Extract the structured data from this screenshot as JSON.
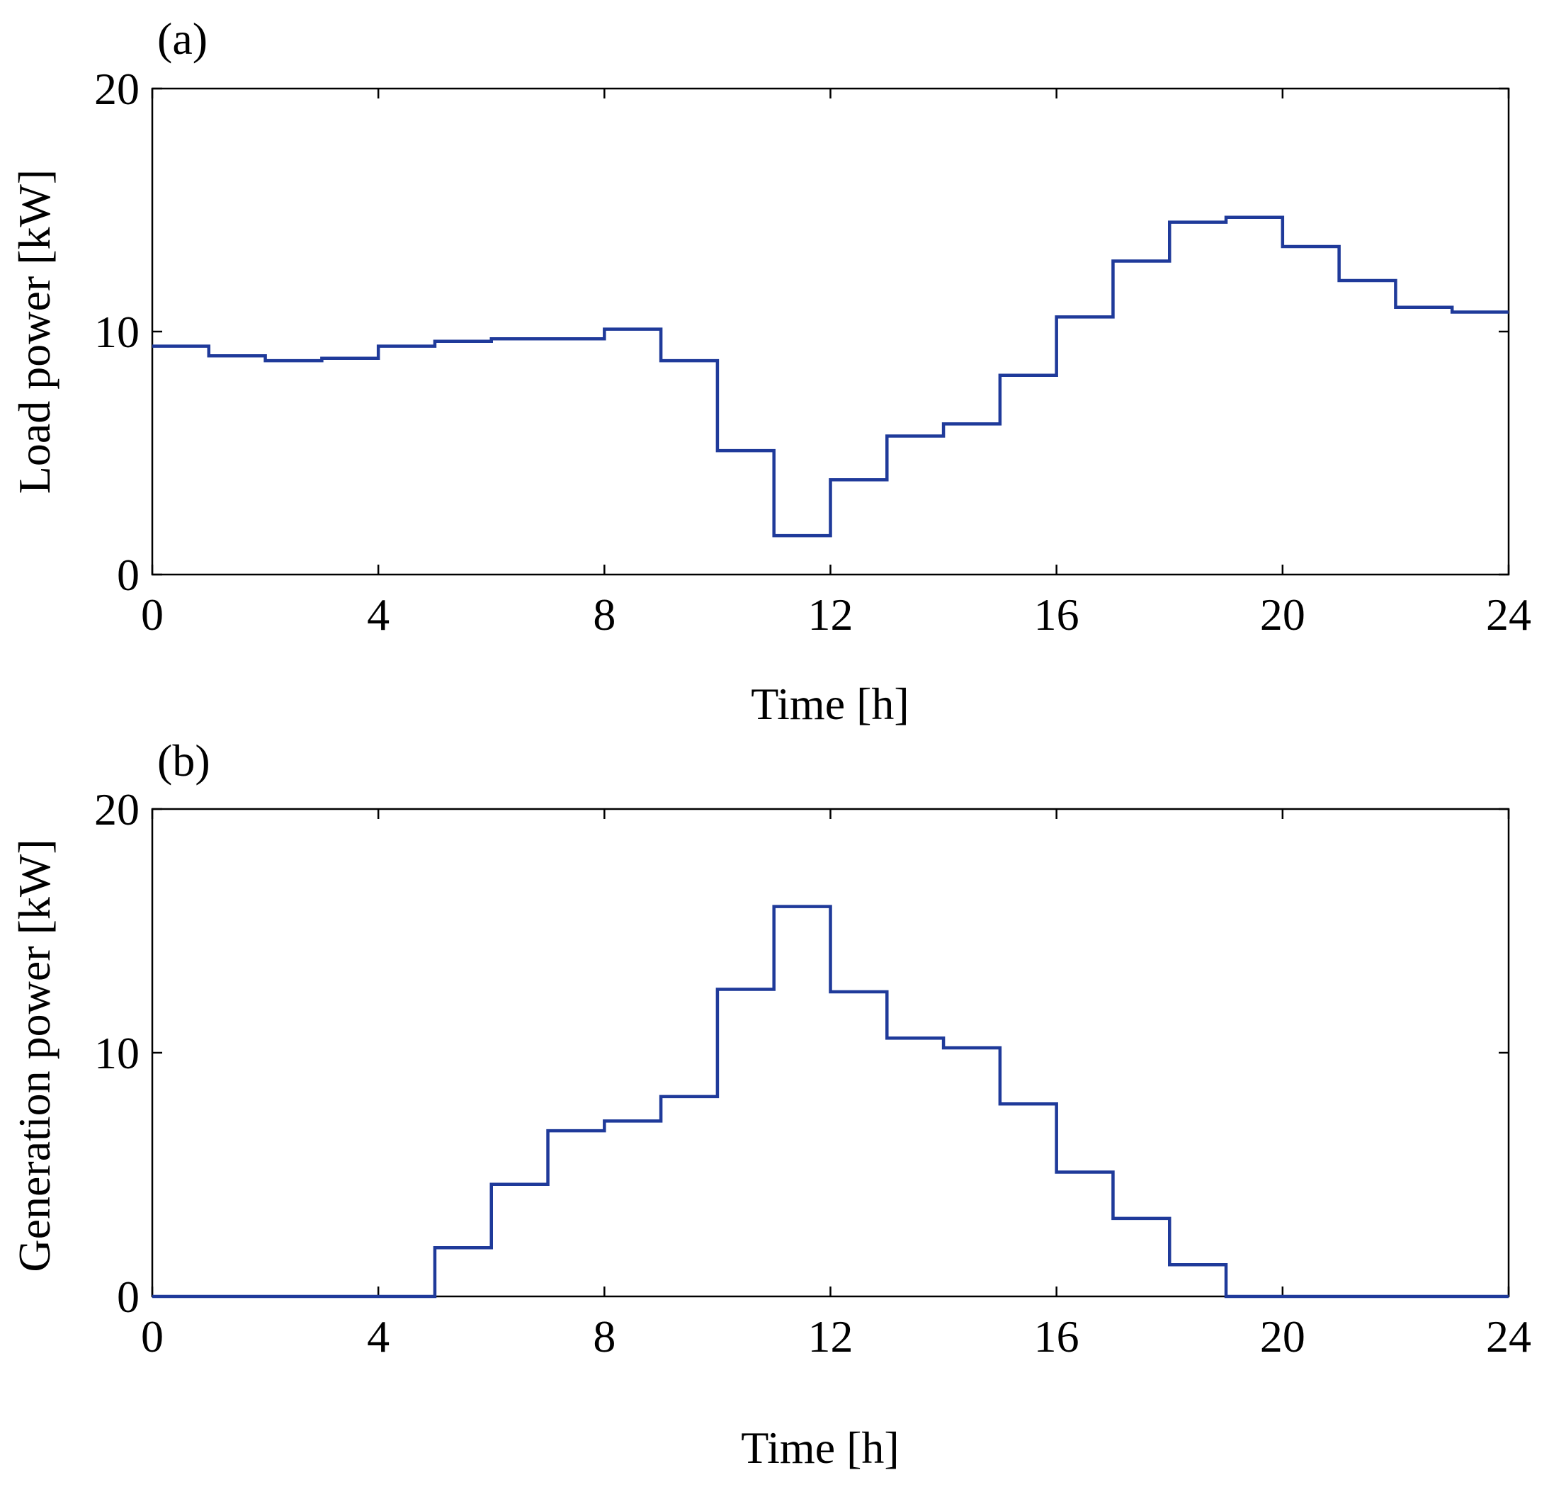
{
  "chart_data": [
    {
      "type": "line",
      "step": "post",
      "panel_label": "(a)",
      "title": "",
      "xlabel": "Time [h]",
      "ylabel": "Load power [kW]",
      "xlim": [
        0,
        24
      ],
      "ylim": [
        0,
        20
      ],
      "xticks": [
        0,
        4,
        8,
        12,
        16,
        20,
        24
      ],
      "yticks": [
        0,
        10,
        20
      ],
      "xtick_labels": [
        "0",
        "4",
        "8",
        "12",
        "16",
        "20",
        "24"
      ],
      "ytick_labels": [
        "0",
        "10",
        "20"
      ],
      "grid": false,
      "color": "#1f3a9a",
      "x": [
        0,
        1,
        2,
        3,
        4,
        5,
        6,
        7,
        8,
        9,
        10,
        11,
        12,
        13,
        14,
        15,
        16,
        17,
        18,
        19,
        20,
        21,
        22,
        23,
        24
      ],
      "values": [
        9.4,
        9.0,
        8.8,
        8.9,
        9.4,
        9.6,
        9.7,
        9.7,
        10.1,
        8.8,
        5.1,
        1.6,
        3.9,
        5.7,
        6.2,
        8.2,
        10.6,
        12.9,
        14.5,
        14.7,
        13.5,
        12.1,
        11.0,
        10.8,
        10.8
      ]
    },
    {
      "type": "line",
      "step": "post",
      "panel_label": "(b)",
      "title": "",
      "xlabel": "Time [h]",
      "ylabel": "Generation power [kW]",
      "xlim": [
        0,
        24
      ],
      "ylim": [
        0,
        20
      ],
      "xticks": [
        0,
        4,
        8,
        12,
        16,
        20,
        24
      ],
      "yticks": [
        0,
        10,
        20
      ],
      "xtick_labels": [
        "0",
        "4",
        "8",
        "12",
        "16",
        "20",
        "24"
      ],
      "ytick_labels": [
        "0",
        "10",
        "20"
      ],
      "grid": false,
      "color": "#1f3a9a",
      "x": [
        0,
        1,
        2,
        3,
        4,
        5,
        6,
        7,
        8,
        9,
        10,
        11,
        12,
        13,
        14,
        15,
        16,
        17,
        18,
        19,
        20,
        21,
        22,
        23,
        24
      ],
      "values": [
        0,
        0,
        0,
        0,
        0,
        2.0,
        4.6,
        6.8,
        7.2,
        8.2,
        12.6,
        16.0,
        12.5,
        10.6,
        10.2,
        7.9,
        5.1,
        3.2,
        1.3,
        0,
        0,
        0,
        0,
        0,
        0
      ]
    }
  ]
}
